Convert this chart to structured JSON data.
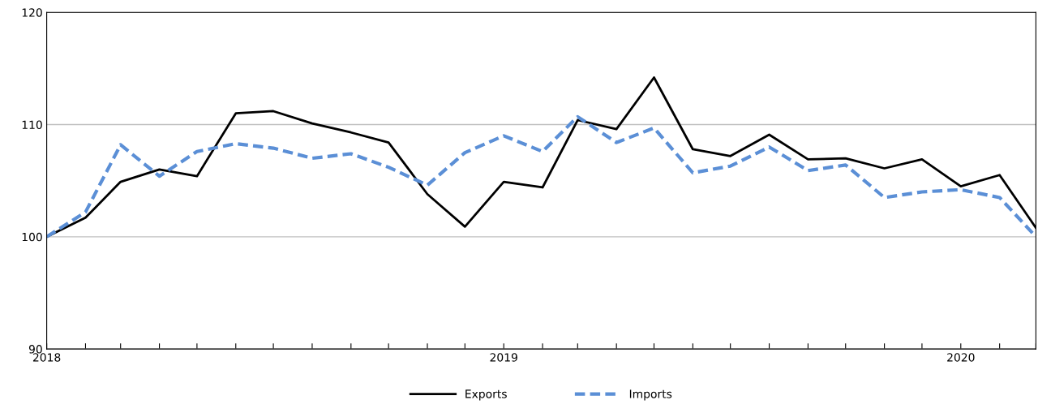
{
  "chart_data": {
    "type": "line",
    "x": [
      "2018-01",
      "2018-02",
      "2018-03",
      "2018-04",
      "2018-05",
      "2018-06",
      "2018-07",
      "2018-08",
      "2018-09",
      "2018-10",
      "2018-11",
      "2018-12",
      "2019-01",
      "2019-02",
      "2019-03",
      "2019-04",
      "2019-05",
      "2019-06",
      "2019-07",
      "2019-08",
      "2019-09",
      "2019-10",
      "2019-11",
      "2019-12",
      "2020-01",
      "2020-02",
      "2020-03"
    ],
    "series": [
      {
        "name": "Exports",
        "color": "#000000",
        "line_style": "solid",
        "values": [
          100,
          101.7,
          104.9,
          106.0,
          105.4,
          111.0,
          111.2,
          110.1,
          109.3,
          108.4,
          103.8,
          100.9,
          104.9,
          104.4,
          110.4,
          109.6,
          114.2,
          107.8,
          107.2,
          109.1,
          106.9,
          107.0,
          106.1,
          106.9,
          104.5,
          105.5,
          100.8
        ]
      },
      {
        "name": "Imports",
        "color": "#5b8fd6",
        "line_style": "dashed",
        "values": [
          100,
          102.2,
          108.2,
          105.4,
          107.6,
          108.3,
          107.9,
          107.0,
          107.4,
          106.2,
          104.6,
          107.5,
          109.0,
          107.6,
          110.7,
          108.4,
          109.7,
          105.7,
          106.3,
          108.0,
          105.9,
          106.4,
          103.5,
          104.0,
          104.2,
          103.5,
          100.0
        ]
      }
    ],
    "xlim": [
      "2018-01",
      "2020-03"
    ],
    "xticks": [
      {
        "value": "2018-01",
        "label": "2018"
      },
      {
        "value": "2018-02",
        "label": null
      },
      {
        "value": "2018-03",
        "label": null
      },
      {
        "value": "2018-04",
        "label": null
      },
      {
        "value": "2018-05",
        "label": null
      },
      {
        "value": "2018-06",
        "label": null
      },
      {
        "value": "2018-07",
        "label": null
      },
      {
        "value": "2018-08",
        "label": null
      },
      {
        "value": "2018-09",
        "label": null
      },
      {
        "value": "2018-10",
        "label": null
      },
      {
        "value": "2018-11",
        "label": null
      },
      {
        "value": "2018-12",
        "label": null
      },
      {
        "value": "2019-01",
        "label": "2019"
      },
      {
        "value": "2019-02",
        "label": null
      },
      {
        "value": "2019-03",
        "label": null
      },
      {
        "value": "2019-04",
        "label": null
      },
      {
        "value": "2019-05",
        "label": null
      },
      {
        "value": "2019-06",
        "label": null
      },
      {
        "value": "2019-07",
        "label": null
      },
      {
        "value": "2019-08",
        "label": null
      },
      {
        "value": "2019-09",
        "label": null
      },
      {
        "value": "2019-10",
        "label": null
      },
      {
        "value": "2019-11",
        "label": null
      },
      {
        "value": "2019-12",
        "label": null
      },
      {
        "value": "2020-01",
        "label": "2020"
      },
      {
        "value": "2020-02",
        "label": null
      },
      {
        "value": "2020-03",
        "label": null
      }
    ],
    "ylim": [
      90,
      120
    ],
    "yticks": [
      90,
      100,
      110,
      120
    ],
    "grid": "y",
    "legend": "bottom",
    "marker": "none"
  }
}
